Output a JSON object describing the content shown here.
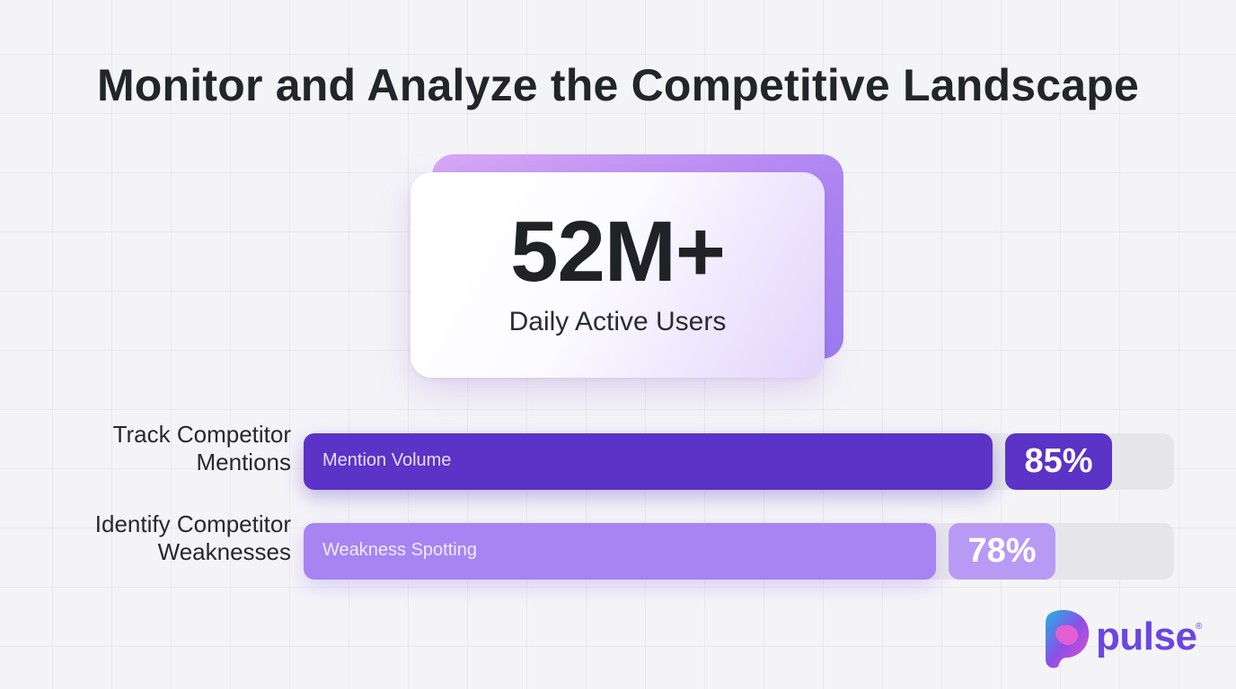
{
  "title": "Monitor and Analyze the Competitive Landscape",
  "stat": {
    "value": "52M+",
    "label": "Daily Active Users"
  },
  "chart_data": {
    "type": "bar",
    "orientation": "horizontal",
    "title": "",
    "xlim": [
      0,
      100
    ],
    "categories": [
      "Track Competitor Mentions",
      "Identify Competitor Weaknesses"
    ],
    "category_lines": [
      [
        "Track Competitor",
        "Mentions"
      ],
      [
        "Identify Competitor",
        "Weaknesses"
      ]
    ],
    "inner_labels": [
      "Mention Volume",
      "Weakness Spotting"
    ],
    "values": [
      85,
      78
    ],
    "value_labels": [
      "85%",
      "78%"
    ],
    "colors": [
      "#5b33c6",
      "#a684f2"
    ],
    "inner_label_colors": [
      "#e6dcff",
      "#f1eaff"
    ],
    "badge_colors": [
      "#5b33c6",
      "#b89af5"
    ],
    "grid": false,
    "legend": "none"
  },
  "brand": {
    "name": "pulse",
    "mark": "®",
    "colors": [
      "#1fb5e0",
      "#8b4fe8",
      "#ea4fc9"
    ],
    "icon": "pulse-logo-icon"
  }
}
